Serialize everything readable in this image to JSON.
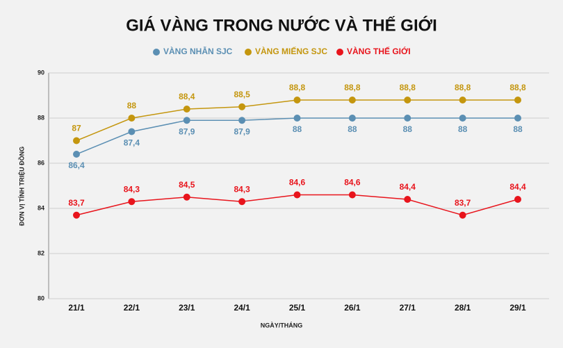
{
  "chart_data": {
    "type": "line",
    "title": "GIÁ VÀNG TRONG NƯỚC VÀ THẾ GIỚI",
    "x_label": "NGÀY/THÁNG",
    "y_label": "ĐƠN VỊ TÍNH TRIỆU ĐỒNG",
    "categories": [
      "21/1",
      "22/1",
      "23/1",
      "24/1",
      "25/1",
      "26/1",
      "27/1",
      "28/1",
      "29/1"
    ],
    "series": [
      {
        "name": "VÀNG NHẪN SJC",
        "color": "#5b8fb3",
        "values": [
          86.4,
          87.4,
          87.9,
          87.9,
          88,
          88,
          88,
          88,
          88
        ],
        "value_labels": [
          "86,4",
          "87,4",
          "87,9",
          "87,9",
          "88",
          "88",
          "88",
          "88",
          "88"
        ]
      },
      {
        "name": "VÀNG MIẾNG SJC",
        "color": "#c4960e",
        "values": [
          87,
          88,
          88.4,
          88.5,
          88.8,
          88.8,
          88.8,
          88.8,
          88.8
        ],
        "value_labels": [
          "87",
          "88",
          "88,4",
          "88,5",
          "88,8",
          "88,8",
          "88,8",
          "88,8",
          "88,8"
        ]
      },
      {
        "name": "VÀNG THẾ GIỚI",
        "color": "#e8141c",
        "values": [
          83.7,
          84.3,
          84.5,
          84.3,
          84.6,
          84.6,
          84.4,
          83.7,
          84.4
        ],
        "value_labels": [
          "83,7",
          "84,3",
          "84,5",
          "84,3",
          "84,6",
          "84,6",
          "84,4",
          "83,7",
          "84,4"
        ]
      }
    ],
    "ylim": [
      80,
      90
    ],
    "yticks": [
      80,
      82,
      84,
      86,
      88,
      90
    ],
    "grid": true
  }
}
